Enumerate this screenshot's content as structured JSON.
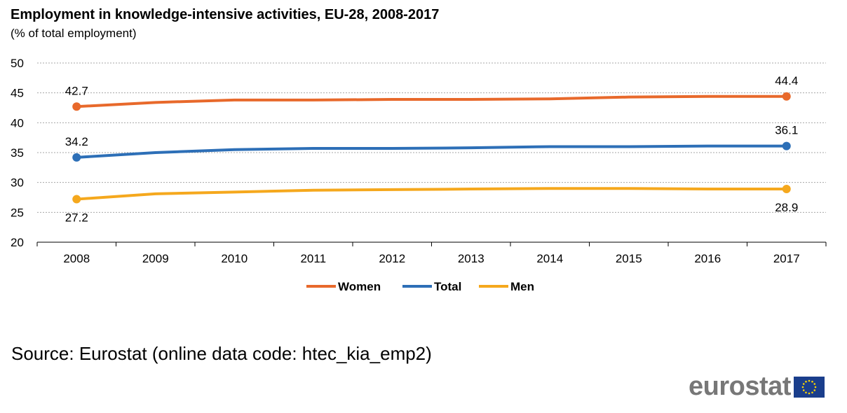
{
  "chart_data": {
    "type": "line",
    "title": "Employment in knowledge-intensive activities, EU-28, 2008-2017",
    "subtitle": "(% of total employment)",
    "xlabel": "",
    "ylabel": "",
    "categories": [
      "2008",
      "2009",
      "2010",
      "2011",
      "2012",
      "2013",
      "2014",
      "2015",
      "2016",
      "2017"
    ],
    "ylim": [
      20,
      50
    ],
    "yticks": [
      "20",
      "25",
      "30",
      "35",
      "40",
      "45",
      "50"
    ],
    "grid": "horizontal dashed",
    "legend_position": "bottom",
    "series": [
      {
        "name": "Women",
        "color": "#E8692B",
        "values": [
          42.7,
          43.4,
          43.8,
          43.8,
          43.9,
          43.9,
          44.0,
          44.3,
          44.4,
          44.4
        ],
        "labels": [
          {
            "index": 0,
            "text": "42.7",
            "pos": "above"
          },
          {
            "index": 9,
            "text": "44.4",
            "pos": "above"
          }
        ]
      },
      {
        "name": "Total",
        "color": "#2D6FB7",
        "values": [
          34.2,
          35.0,
          35.5,
          35.7,
          35.7,
          35.8,
          36.0,
          36.0,
          36.1,
          36.1
        ],
        "labels": [
          {
            "index": 0,
            "text": "34.2",
            "pos": "above"
          },
          {
            "index": 9,
            "text": "36.1",
            "pos": "above"
          }
        ]
      },
      {
        "name": "Men",
        "color": "#F5A81D",
        "values": [
          27.2,
          28.1,
          28.4,
          28.7,
          28.8,
          28.9,
          29.0,
          29.0,
          28.9,
          28.9
        ],
        "labels": [
          {
            "index": 0,
            "text": "27.2",
            "pos": "below"
          },
          {
            "index": 9,
            "text": "28.9",
            "pos": "below"
          }
        ]
      }
    ]
  },
  "source": "Source: Eurostat (online data code: htec_kia_emp2)",
  "logo": {
    "text": "eurostat",
    "flag_color": "#1A3E8C",
    "star_color": "#FFD500"
  }
}
